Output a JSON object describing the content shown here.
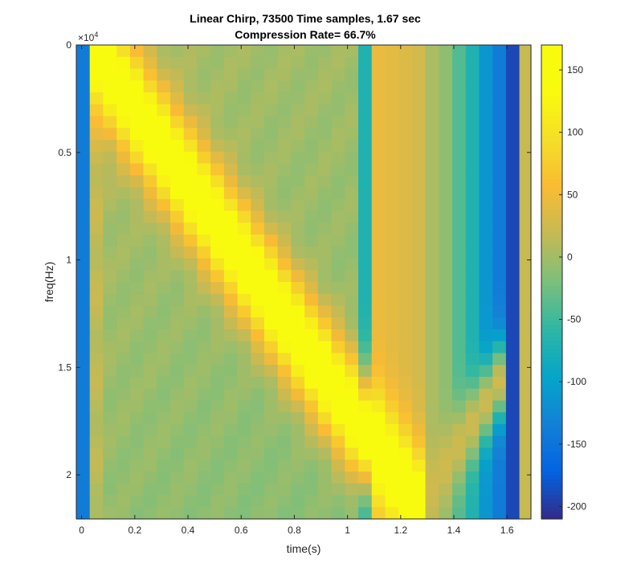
{
  "chart_data": {
    "type": "heatmap",
    "title": [
      "Linear Chirp, 73500 Time samples, 1.67 sec",
      "Compression Rate= 66.7%"
    ],
    "xlabel": "time(s)",
    "ylabel": "freq(Hz)",
    "y_exponent": "×10",
    "y_exponent_power": "4",
    "xlim": [
      -0.02,
      1.69
    ],
    "ylim": [
      0,
      22050
    ],
    "y_reversed": true,
    "xticks": [
      0,
      0.2,
      0.4,
      0.6,
      0.8,
      1,
      1.2,
      1.4,
      1.6
    ],
    "xtick_labels": [
      "0",
      "0.2",
      "0.4",
      "0.6",
      "0.8",
      "1",
      "1.2",
      "1.4",
      "1.6"
    ],
    "yticks": [
      0,
      5000,
      10000,
      15000,
      20000
    ],
    "ytick_labels": [
      "0",
      "0.5",
      "1",
      "1.5",
      "2"
    ],
    "grid": false,
    "colormap": "parula",
    "colorbar": {
      "clim": [
        -210,
        170
      ],
      "ticks": [
        150,
        100,
        50,
        0,
        -50,
        -100,
        -150,
        -200
      ],
      "tick_labels": [
        "150",
        "100",
        "50",
        "0",
        "-50",
        "-100",
        "-150",
        "-200"
      ]
    },
    "time_columns": {
      "start_s": -0.02,
      "step_s": 0.0505,
      "count": 34,
      "column_offset": [
        -140,
        22,
        5,
        4,
        3,
        3,
        2,
        2,
        2,
        1,
        1,
        1,
        0,
        0,
        0,
        0,
        0,
        0,
        0,
        0,
        0,
        -70,
        45,
        40,
        35,
        28,
        5,
        -10,
        -40,
        -70,
        -110,
        -140,
        -190,
        20
      ]
    },
    "freq_rows": {
      "count": 40,
      "max_hz": 22050
    },
    "chirp": {
      "start_time_s": 0.03,
      "end_time_s": 1.27,
      "start_freq_hz": 0,
      "end_freq_hz": 21500,
      "peak_value": 168
    },
    "reflection": {
      "start_time_s": 1.27,
      "end_time_s": 1.59,
      "start_freq_hz": 21500,
      "end_freq_hz": 15300,
      "peak_value": 25
    }
  }
}
